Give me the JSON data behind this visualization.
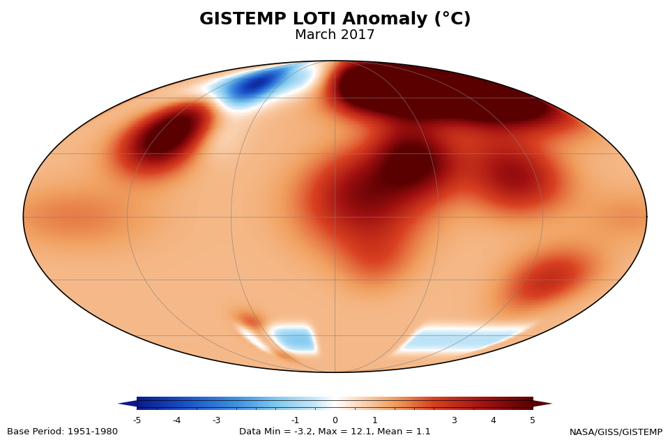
{
  "title": "GISTEMP LOTI Anomaly (°C)",
  "subtitle": "March 2017",
  "base_period": "Base Period: 1951-1980",
  "data_stats": "Data Min = -3.2, Max = 12.1, Mean = 1.1",
  "credit": "NASA/GISS/GISTEMP",
  "colorbar_ticks": [
    -5,
    -4,
    -3,
    -1,
    0,
    1,
    3,
    4,
    5
  ],
  "colorbar_vmin": -5,
  "colorbar_vmax": 5,
  "bg_color": "#ffffff",
  "title_fontsize": 18,
  "subtitle_fontsize": 14,
  "annotation_fontsize": 9.5,
  "cmap_colors": [
    [
      0.0,
      "#0a1a8c"
    ],
    [
      0.12,
      "#1a50c8"
    ],
    [
      0.25,
      "#4090e0"
    ],
    [
      0.35,
      "#80c8f0"
    ],
    [
      0.45,
      "#c8e8f8"
    ],
    [
      0.5,
      "#ffffff"
    ],
    [
      0.55,
      "#fce0c8"
    ],
    [
      0.65,
      "#f0a060"
    ],
    [
      0.75,
      "#d84020"
    ],
    [
      0.88,
      "#a01010"
    ],
    [
      1.0,
      "#5a0000"
    ]
  ],
  "gridline_lons": [
    -180,
    -120,
    -60,
    0,
    60,
    120,
    180
  ],
  "gridline_lats": [
    -60,
    -30,
    0,
    30,
    60
  ]
}
